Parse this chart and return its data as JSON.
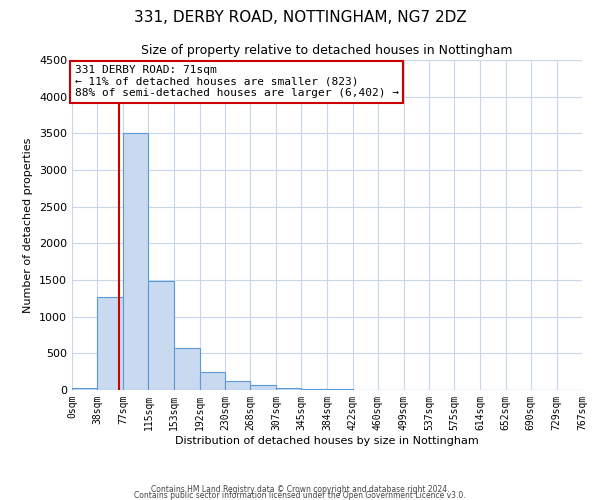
{
  "title": "331, DERBY ROAD, NOTTINGHAM, NG7 2DZ",
  "subtitle": "Size of property relative to detached houses in Nottingham",
  "xlabel": "Distribution of detached houses by size in Nottingham",
  "ylabel": "Number of detached properties",
  "bin_edges": [
    0,
    38,
    77,
    115,
    153,
    192,
    230,
    268,
    307,
    345,
    384,
    422,
    460,
    499,
    537,
    575,
    614,
    652,
    690,
    729,
    767
  ],
  "bin_counts": [
    30,
    1270,
    3500,
    1480,
    570,
    240,
    120,
    75,
    30,
    15,
    10,
    5,
    0,
    0,
    0,
    0,
    0,
    0,
    0,
    0
  ],
  "bar_color": "#c9d9f0",
  "bar_edge_color": "#5b9bd5",
  "property_size": 71,
  "property_line_color": "#cc0000",
  "annotation_line1": "331 DERBY ROAD: 71sqm",
  "annotation_line2": "← 11% of detached houses are smaller (823)",
  "annotation_line3": "88% of semi-detached houses are larger (6,402) →",
  "annotation_box_color": "#ffffff",
  "annotation_box_edge_color": "#cc0000",
  "ylim": [
    0,
    4500
  ],
  "yticks": [
    0,
    500,
    1000,
    1500,
    2000,
    2500,
    3000,
    3500,
    4000,
    4500
  ],
  "tick_labels": [
    "0sqm",
    "38sqm",
    "77sqm",
    "115sqm",
    "153sqm",
    "192sqm",
    "230sqm",
    "268sqm",
    "307sqm",
    "345sqm",
    "384sqm",
    "422sqm",
    "460sqm",
    "499sqm",
    "537sqm",
    "575sqm",
    "614sqm",
    "652sqm",
    "690sqm",
    "729sqm",
    "767sqm"
  ],
  "footer_line1": "Contains HM Land Registry data © Crown copyright and database right 2024.",
  "footer_line2": "Contains public sector information licensed under the Open Government Licence v3.0.",
  "background_color": "#ffffff",
  "grid_color": "#c8d8ea",
  "title_fontsize": 11,
  "subtitle_fontsize": 9,
  "xlabel_fontsize": 8,
  "ylabel_fontsize": 8,
  "xtick_fontsize": 7,
  "ytick_fontsize": 8,
  "footer_fontsize": 5.5,
  "annotation_fontsize": 8
}
